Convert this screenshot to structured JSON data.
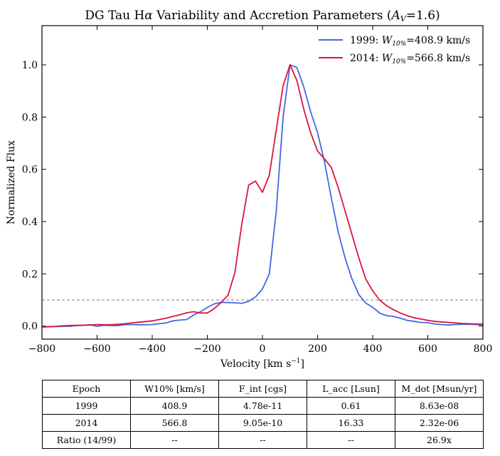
{
  "chart_data": {
    "type": "line",
    "title_main": "DG Tau H",
    "title_alpha": "α",
    "title_rest": " Variability and Accretion Parameters (",
    "title_av": "A",
    "title_av_sub": "V",
    "title_av_val": "=1.6)",
    "xlabel": "Velocity [km s",
    "xlabel_exp": "−1",
    "xlabel_close": "]",
    "ylabel": "Normalized Flux",
    "xlim": [
      -800,
      800
    ],
    "ylim": [
      -0.05,
      1.15
    ],
    "xticks": [
      -800,
      -600,
      -400,
      -200,
      0,
      200,
      400,
      600,
      800
    ],
    "xtick_labels": [
      "−800",
      "−600",
      "−400",
      "−200",
      "0",
      "200",
      "400",
      "600",
      "800"
    ],
    "yticks": [
      0.0,
      0.2,
      0.4,
      0.6,
      0.8,
      1.0
    ],
    "ytick_labels": [
      "0.0",
      "0.2",
      "0.4",
      "0.6",
      "0.8",
      "1.0"
    ],
    "threshold": 0.1,
    "legend_position": "top-right",
    "series": [
      {
        "legend_epoch": "1999: ",
        "legend_w": "W",
        "legend_w_sub": "10%",
        "legend_value": "=408.9 km/s",
        "color": "#4169e1",
        "x": [
          -800,
          -775,
          -750,
          -725,
          -700,
          -675,
          -650,
          -625,
          -600,
          -575,
          -550,
          -525,
          -500,
          -475,
          -450,
          -425,
          -400,
          -375,
          -350,
          -325,
          -300,
          -275,
          -250,
          -225,
          -200,
          -175,
          -150,
          -125,
          -100,
          -75,
          -50,
          -25,
          0,
          25,
          50,
          75,
          100,
          125,
          150,
          175,
          200,
          225,
          250,
          275,
          300,
          325,
          350,
          375,
          400,
          425,
          450,
          475,
          500,
          525,
          550,
          575,
          600,
          625,
          650,
          675,
          700,
          725,
          750,
          775,
          800
        ],
        "y": [
          -0.003,
          -0.003,
          -0.002,
          -0.001,
          -0.001,
          0.002,
          0.003,
          0.005,
          -0.001,
          0.003,
          0.002,
          0.002,
          0.005,
          0.006,
          0.005,
          0.005,
          0.006,
          0.009,
          0.012,
          0.02,
          0.023,
          0.025,
          0.042,
          0.055,
          0.071,
          0.085,
          0.091,
          0.09,
          0.089,
          0.087,
          0.095,
          0.112,
          0.142,
          0.2,
          0.44,
          0.8,
          1.0,
          0.99,
          0.915,
          0.82,
          0.74,
          0.63,
          0.49,
          0.36,
          0.26,
          0.18,
          0.12,
          0.088,
          0.072,
          0.05,
          0.04,
          0.037,
          0.03,
          0.022,
          0.018,
          0.014,
          0.013,
          0.008,
          0.006,
          0.004,
          0.006,
          0.007,
          0.007,
          0.006,
          0.005
        ]
      },
      {
        "legend_epoch": "2014: ",
        "legend_w": "W",
        "legend_w_sub": "10%",
        "legend_value": "=566.8 km/s",
        "color": "#dc143c",
        "x": [
          -800,
          -775,
          -750,
          -725,
          -700,
          -675,
          -650,
          -625,
          -600,
          -575,
          -550,
          -525,
          -500,
          -475,
          -450,
          -425,
          -400,
          -375,
          -350,
          -325,
          -300,
          -275,
          -250,
          -225,
          -200,
          -175,
          -150,
          -125,
          -100,
          -75,
          -50,
          -25,
          0,
          25,
          50,
          75,
          100,
          125,
          150,
          175,
          200,
          225,
          250,
          275,
          300,
          325,
          350,
          375,
          400,
          425,
          450,
          475,
          500,
          525,
          550,
          575,
          600,
          625,
          650,
          675,
          700,
          725,
          750,
          775,
          800
        ],
        "y": [
          -0.004,
          -0.002,
          -0.001,
          0.001,
          0.002,
          0.003,
          0.003,
          0.004,
          0.006,
          0.005,
          0.005,
          0.007,
          0.009,
          0.012,
          0.015,
          0.017,
          0.02,
          0.025,
          0.03,
          0.037,
          0.043,
          0.051,
          0.055,
          0.05,
          0.05,
          0.067,
          0.09,
          0.118,
          0.205,
          0.39,
          0.54,
          0.555,
          0.512,
          0.578,
          0.75,
          0.92,
          1.0,
          0.94,
          0.83,
          0.74,
          0.67,
          0.64,
          0.607,
          0.53,
          0.44,
          0.35,
          0.26,
          0.18,
          0.135,
          0.1,
          0.078,
          0.063,
          0.05,
          0.04,
          0.032,
          0.027,
          0.022,
          0.018,
          0.016,
          0.014,
          0.012,
          0.01,
          0.009,
          0.008,
          0.008
        ]
      }
    ]
  },
  "table": {
    "headers": [
      "Epoch",
      "W10% [km/s]",
      "F_int [cgs]",
      "L_acc [Lsun]",
      "M_dot [Msun/yr]"
    ],
    "rows": [
      [
        "1999",
        "408.9",
        "4.78e-11",
        "0.61",
        "8.63e-08"
      ],
      [
        "2014",
        "566.8",
        "9.05e-10",
        "16.33",
        "2.32e-06"
      ],
      [
        "Ratio (14/99)",
        "--",
        "--",
        "--",
        "26.9x"
      ]
    ]
  }
}
